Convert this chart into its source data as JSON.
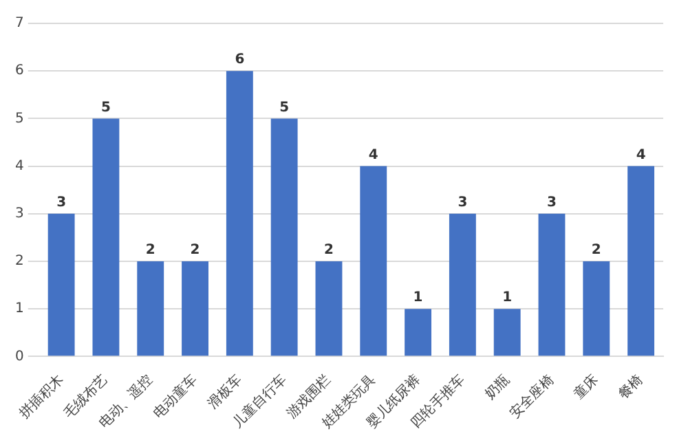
{
  "chart_data": {
    "type": "bar",
    "categories": [
      "拼插积木",
      "毛绒布艺",
      "电动、遥控",
      "电动童车",
      "滑板车",
      "儿童自行车",
      "游戏围栏",
      "娃娃类玩具",
      "婴儿纸尿裤",
      "四轮手推车",
      "奶瓶",
      "安全座椅",
      "童床",
      "餐椅"
    ],
    "values": [
      3,
      5,
      2,
      2,
      6,
      5,
      2,
      4,
      1,
      3,
      1,
      3,
      2,
      4
    ],
    "color": "#4472c4",
    "ylim": [
      0,
      7
    ],
    "yticks": [
      0,
      1,
      2,
      3,
      4,
      5,
      6,
      7
    ],
    "grid": "y",
    "data_labels": true,
    "legend": false
  }
}
